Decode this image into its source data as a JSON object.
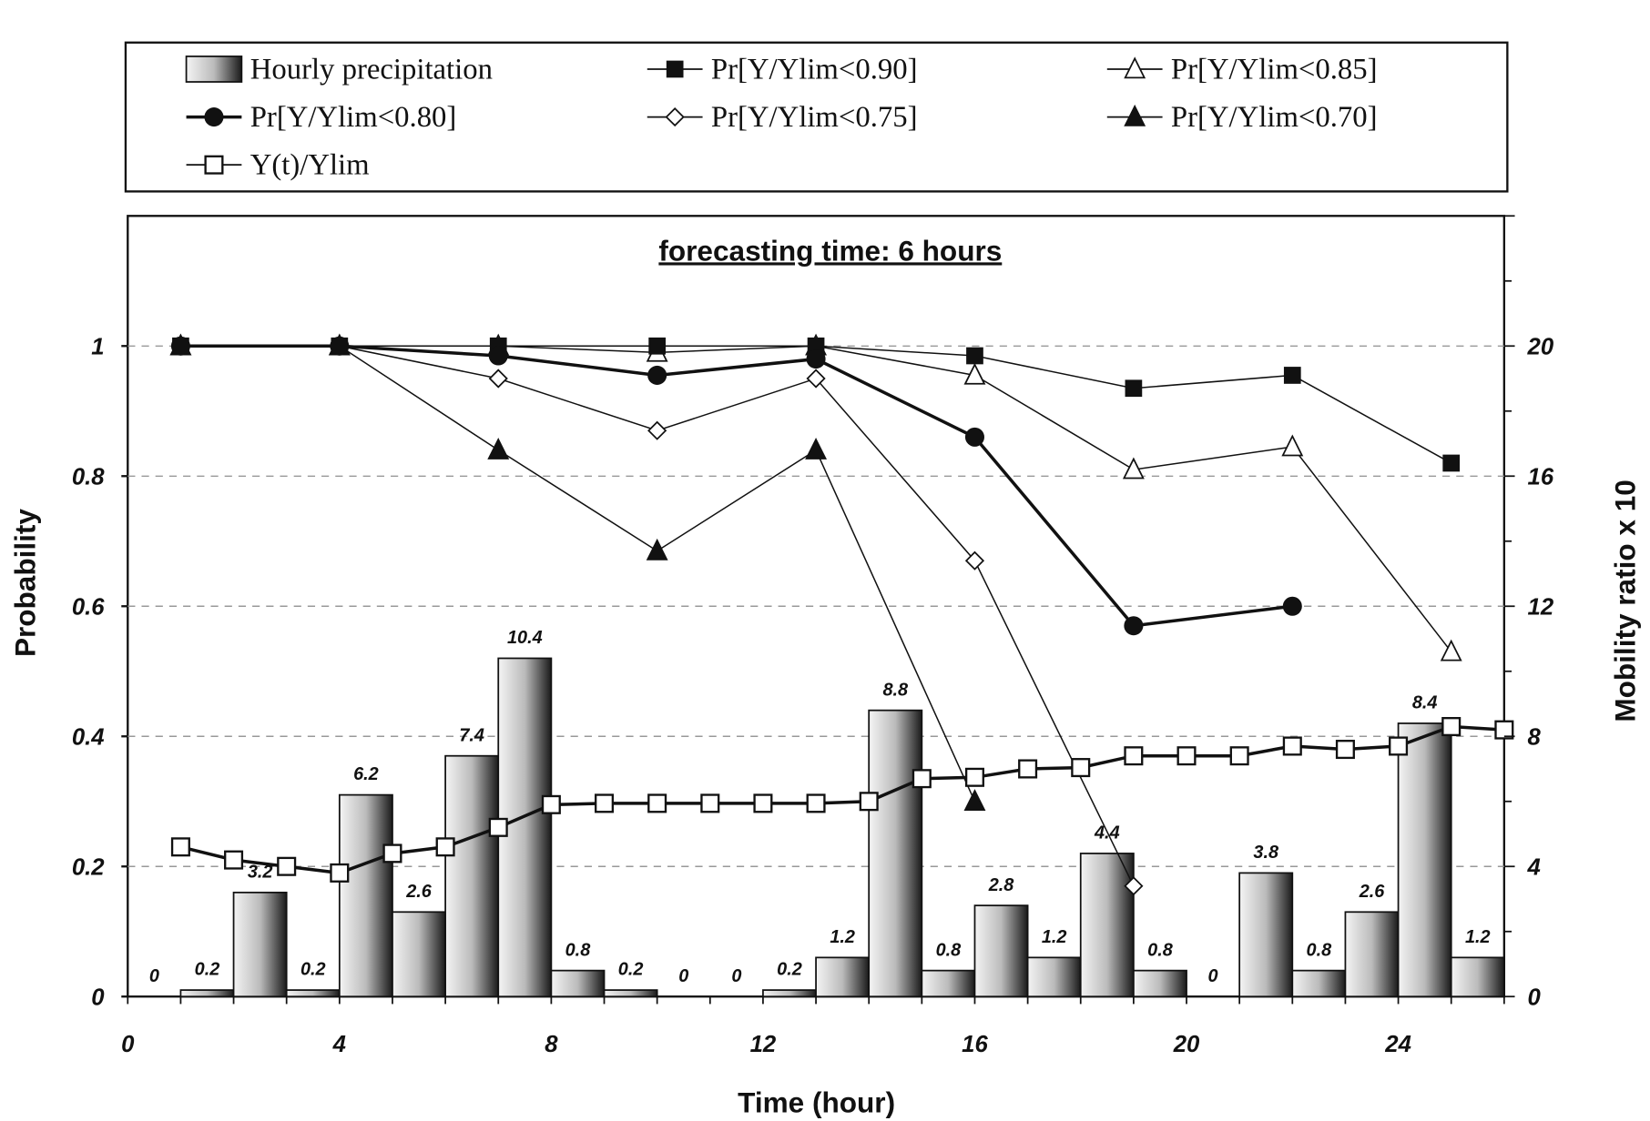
{
  "chart_data": {
    "type": "bar+line",
    "title": "forecasting time: 6 hours",
    "xlabel": "Time (hour)",
    "ylabel": "Probability",
    "y2label": "Mobility ratio x 10",
    "xlim": [
      0,
      26
    ],
    "ylim": [
      0,
      1.2
    ],
    "y2lim": [
      0,
      24
    ],
    "xticks": [
      0,
      4,
      8,
      12,
      16,
      20,
      24
    ],
    "yticks": [
      0,
      0.2,
      0.4,
      0.6,
      0.8,
      1
    ],
    "y2ticks": [
      0,
      4,
      8,
      12,
      16,
      20
    ],
    "grid": "horizontal dashed",
    "legend_placement": "top",
    "bars": {
      "name": "Hourly precipitation",
      "axis": "right",
      "x_start": [
        0,
        1,
        2,
        3,
        4,
        5,
        6,
        7,
        8,
        9,
        10,
        11,
        12,
        13,
        14,
        15,
        16,
        17,
        18,
        19,
        20,
        21,
        22,
        23,
        24,
        25
      ],
      "values": [
        0,
        0.2,
        3.2,
        0.2,
        6.2,
        2.6,
        7.4,
        10.4,
        0.8,
        0.2,
        0,
        0,
        0.2,
        1.2,
        8.8,
        0.8,
        2.8,
        1.2,
        4.4,
        0.8,
        0,
        3.8,
        0.8,
        2.6,
        8.4,
        1.2
      ],
      "labels": [
        "0",
        "0.2",
        "3.2",
        "0.2",
        "6.2",
        "2.6",
        "7.4",
        "10.4",
        "0.8",
        "0.2",
        "0",
        "0",
        "0.2",
        "1.2",
        "8.8",
        "0.8",
        "2.8",
        "1.2",
        "4.4",
        "0.8",
        "0",
        "3.8",
        "0.8",
        "2.6",
        "8.4",
        "1.2"
      ]
    },
    "series": [
      {
        "name": "Pr[Y/Ylim<0.90]",
        "marker": "square-filled",
        "x": [
          1,
          4,
          7,
          10,
          13,
          16,
          19,
          22,
          25
        ],
        "values": [
          1,
          1,
          1,
          1,
          1,
          0.985,
          0.935,
          0.955,
          0.82
        ]
      },
      {
        "name": "Pr[Y/Ylim<0.85]",
        "marker": "triangle-open",
        "x": [
          1,
          4,
          7,
          10,
          13,
          16,
          19,
          22,
          25
        ],
        "values": [
          1,
          1,
          1,
          0.99,
          1,
          0.955,
          0.81,
          0.845,
          0.53
        ]
      },
      {
        "name": "Pr[Y/Ylim<0.80]",
        "marker": "circle-filled",
        "x": [
          1,
          4,
          7,
          10,
          13,
          16,
          19,
          22
        ],
        "values": [
          1,
          1,
          0.985,
          0.955,
          0.98,
          0.86,
          0.57,
          0.6
        ]
      },
      {
        "name": "Pr[Y/Ylim<0.75]",
        "marker": "diamond-open",
        "x": [
          1,
          4,
          7,
          10,
          13,
          16,
          19
        ],
        "values": [
          1,
          1,
          0.95,
          0.87,
          0.95,
          0.67,
          0.17
        ]
      },
      {
        "name": "Pr[Y/Ylim<0.70]",
        "marker": "triangle-filled",
        "x": [
          1,
          4,
          7,
          10,
          13,
          16
        ],
        "values": [
          1,
          1,
          0.84,
          0.685,
          0.84,
          0.3
        ]
      },
      {
        "name": "Y(t)/Ylim",
        "marker": "square-open",
        "x": [
          1,
          2,
          3,
          4,
          5,
          6,
          7,
          8,
          9,
          10,
          11,
          12,
          13,
          14,
          15,
          16,
          17,
          18,
          19,
          20,
          21,
          22,
          23,
          24,
          25,
          26
        ],
        "values": [
          0.23,
          0.21,
          0.2,
          0.19,
          0.22,
          0.23,
          0.26,
          0.295,
          0.297,
          0.297,
          0.297,
          0.297,
          0.297,
          0.3,
          0.335,
          0.337,
          0.35,
          0.352,
          0.37,
          0.37,
          0.37,
          0.385,
          0.38,
          0.385,
          0.415,
          0.41
        ]
      }
    ]
  }
}
